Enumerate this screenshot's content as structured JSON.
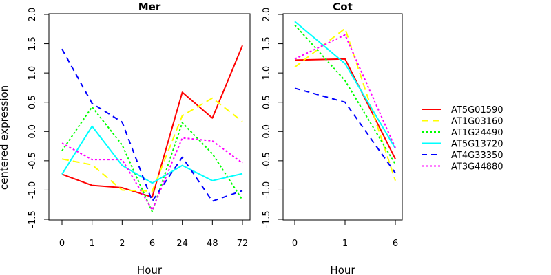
{
  "chart_data": {
    "type": "line",
    "ylabel": "centered expression",
    "legend_position": "right",
    "grid": false,
    "series": [
      {
        "name": "AT5G01590",
        "color": "#ff0000",
        "dash": "solid"
      },
      {
        "name": "AT1G03160",
        "color": "#ffff00",
        "dash": "long-dash"
      },
      {
        "name": "AT1G24490",
        "color": "#00ff00",
        "dash": "dotted"
      },
      {
        "name": "AT5G13720",
        "color": "#00ffff",
        "dash": "solid"
      },
      {
        "name": "AT4G33350",
        "color": "#0000ff",
        "dash": "dashed"
      },
      {
        "name": "AT3G44880",
        "color": "#ff00ff",
        "dash": "dotted"
      }
    ],
    "panels": [
      {
        "title": "Mer",
        "xlabel": "Hour",
        "categories": [
          "0",
          "1",
          "2",
          "6",
          "24",
          "48",
          "72"
        ],
        "ylim": [
          -1.5,
          2.0
        ],
        "yticks": [
          "-1.5",
          "-1.0",
          "-0.5",
          "0.0",
          "0.5",
          "1.0",
          "1.5",
          "2.0"
        ],
        "values": {
          "AT5G01590": [
            -0.73,
            -0.92,
            -0.96,
            -1.12,
            0.67,
            0.23,
            1.47
          ],
          "AT1G03160": [
            -0.47,
            -0.57,
            -1.0,
            -1.02,
            0.27,
            0.57,
            0.17
          ],
          "AT1G24490": [
            -0.33,
            0.42,
            -0.23,
            -1.37,
            0.15,
            -0.38,
            -1.17
          ],
          "AT5G13720": [
            -0.73,
            0.09,
            -0.58,
            -0.88,
            -0.58,
            -0.84,
            -0.72
          ],
          "AT4G33350": [
            1.41,
            0.48,
            0.16,
            -1.19,
            -0.44,
            -1.19,
            -1.01
          ],
          "AT3G44880": [
            -0.2,
            -0.48,
            -0.48,
            -1.34,
            -0.11,
            -0.16,
            -0.54
          ]
        }
      },
      {
        "title": "Cot",
        "xlabel": "Hour",
        "categories": [
          "0",
          "1",
          "6"
        ],
        "ylim": [
          -1.5,
          2.0
        ],
        "yticks": [
          "-1.5",
          "-1.0",
          "-0.5",
          "0.0",
          "0.5",
          "1.0",
          "1.5",
          "2.0"
        ],
        "values": {
          "AT5G01590": [
            1.22,
            1.24,
            -0.47
          ],
          "AT1G03160": [
            1.1,
            1.76,
            -0.84
          ],
          "AT1G24490": [
            1.82,
            0.87,
            -0.56
          ],
          "AT5G13720": [
            1.88,
            1.16,
            -0.29
          ],
          "AT4G33350": [
            0.74,
            0.5,
            -0.71
          ],
          "AT3G44880": [
            1.24,
            1.65,
            -0.28
          ]
        }
      }
    ]
  }
}
